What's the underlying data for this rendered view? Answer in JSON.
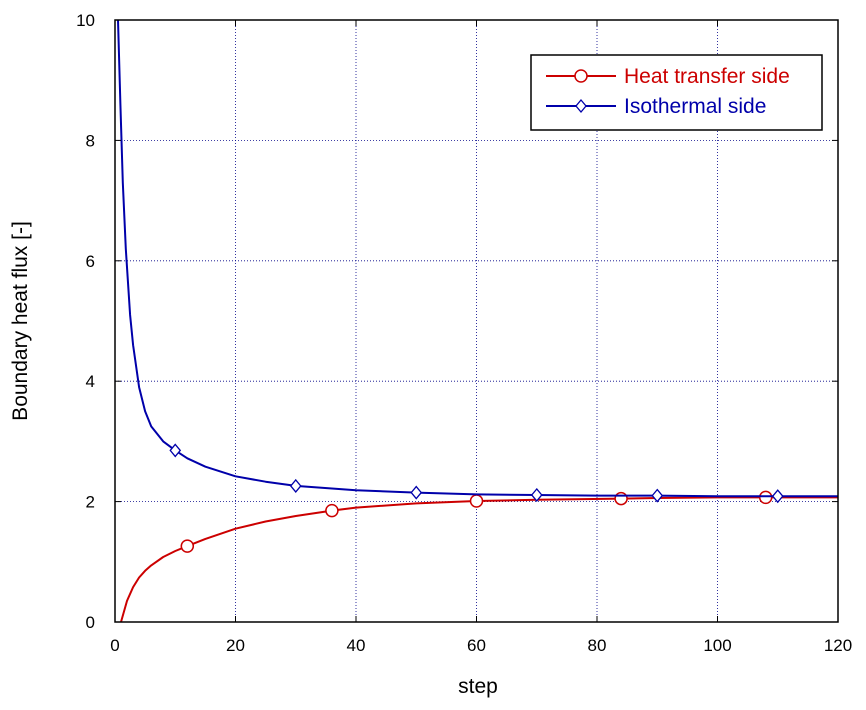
{
  "chart_data": {
    "type": "line",
    "title": "",
    "xlabel": "step",
    "ylabel": "Boundary heat flux [-]",
    "xlim": [
      0,
      120
    ],
    "ylim": [
      0,
      10
    ],
    "xticks": [
      0,
      20,
      40,
      60,
      80,
      100,
      120
    ],
    "yticks": [
      0,
      2,
      4,
      6,
      8,
      10
    ],
    "x_tick_labels": [
      "0",
      "20",
      "40",
      "60",
      "80",
      "100",
      "120"
    ],
    "y_tick_labels": [
      "0",
      "2",
      "4",
      "6",
      "8",
      "10"
    ],
    "grid": true,
    "legend_position": "top-right",
    "series": [
      {
        "name": "Heat transfer side",
        "color": "#cc0000",
        "marker": "circle",
        "x": [
          1,
          2,
          3,
          4,
          5,
          6,
          8,
          10,
          12,
          15,
          20,
          25,
          30,
          36,
          40,
          50,
          60,
          70,
          84,
          90,
          100,
          108,
          110,
          120
        ],
        "y": [
          0.0,
          0.35,
          0.58,
          0.74,
          0.85,
          0.94,
          1.08,
          1.18,
          1.26,
          1.38,
          1.55,
          1.67,
          1.76,
          1.85,
          1.9,
          1.97,
          2.01,
          2.03,
          2.05,
          2.06,
          2.07,
          2.07,
          2.07,
          2.07
        ],
        "marker_points": {
          "x": [
            12,
            36,
            60,
            84,
            108
          ],
          "y": [
            1.26,
            1.85,
            2.01,
            2.05,
            2.07
          ]
        }
      },
      {
        "name": "Isothermal side",
        "color": "#0000aa",
        "marker": "diamond",
        "x": [
          0.5,
          0.9,
          1.3,
          1.8,
          2.5,
          3,
          4,
          5,
          6,
          8,
          10,
          12,
          15,
          20,
          25,
          30,
          40,
          50,
          60,
          70,
          80,
          90,
          100,
          110,
          120
        ],
        "y": [
          10.0,
          8.6,
          7.3,
          6.2,
          5.1,
          4.6,
          3.9,
          3.5,
          3.25,
          3.0,
          2.85,
          2.72,
          2.58,
          2.42,
          2.33,
          2.26,
          2.19,
          2.15,
          2.12,
          2.11,
          2.1,
          2.1,
          2.09,
          2.09,
          2.09
        ],
        "marker_points": {
          "x": [
            10,
            30,
            50,
            70,
            90,
            110
          ],
          "y": [
            2.85,
            2.26,
            2.15,
            2.11,
            2.1,
            2.09
          ]
        }
      }
    ]
  }
}
